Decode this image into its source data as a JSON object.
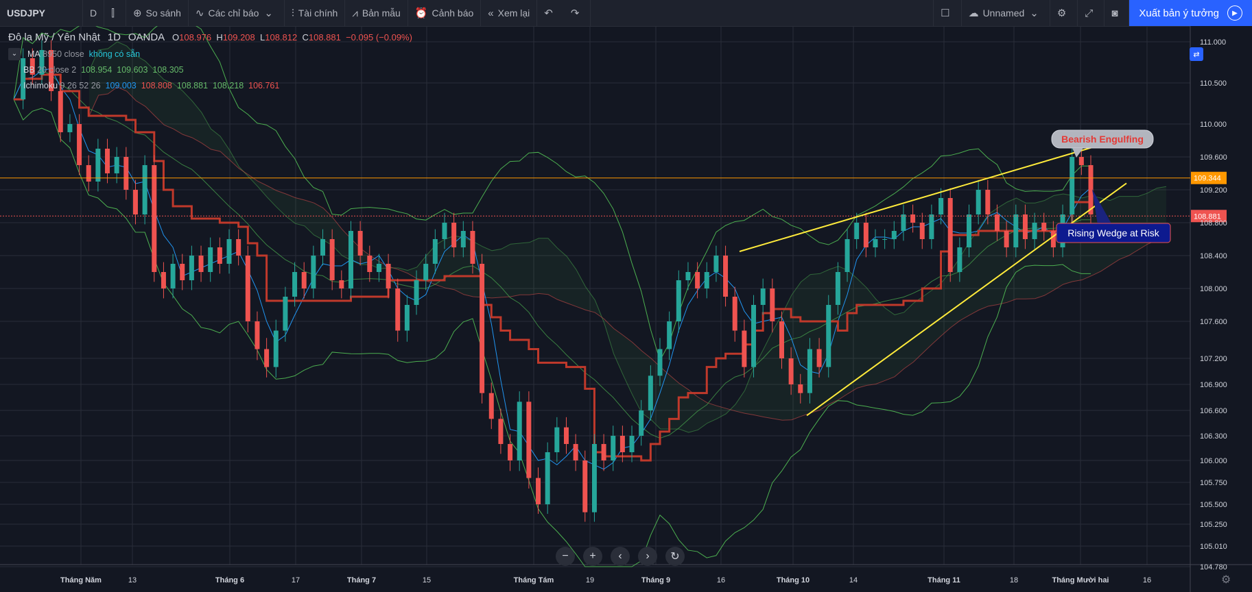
{
  "toolbar": {
    "symbol": "USDJPY",
    "interval": "D",
    "compare_label": "So sánh",
    "indicators_label": "Các chỉ báo",
    "financials_label": "Tài chính",
    "templates_label": "Bản mẫu",
    "alert_label": "Cảnh báo",
    "replay_label": "Xem lại",
    "layout_name": "Unnamed",
    "publish_label": "Xuất bản ý tưởng"
  },
  "legend": {
    "instrument": "Đô la Mỹ / Yên Nhật",
    "interval": "1D",
    "exchange": "OANDA",
    "open_label": "O",
    "open": "108.976",
    "high_label": "H",
    "high": "109.208",
    "low_label": "L",
    "low": "108.812",
    "close_label": "C",
    "close": "108.881",
    "change": "−0.095 (−0.09%)",
    "ma_name": "MA",
    "ma_params": "8950 close",
    "ma_value": "không có sẵn",
    "bb_name": "BB",
    "bb_params": "20 close 2",
    "bb_v1": "108.954",
    "bb_v2": "109.603",
    "bb_v3": "108.305",
    "ichi_name": "Ichimoku",
    "ichi_params": "9 26 52 26",
    "ichi_v1": "109.003",
    "ichi_v2": "108.808",
    "ichi_v3": "108.881",
    "ichi_v4": "108.218",
    "ichi_v5": "106.761"
  },
  "colors": {
    "bg": "#131722",
    "grid": "#2a2e39",
    "up": "#26a69a",
    "down": "#ef5350",
    "kijun": "#c0392b",
    "tenkan": "#2196f3",
    "bb": "#4caf50",
    "wedge": "#ffeb3b",
    "hline": "#ff9800"
  },
  "chart_data": {
    "type": "candlestick",
    "y_ticks": [
      111.0,
      110.5,
      110.0,
      109.6,
      109.2,
      108.8,
      108.4,
      108.0,
      107.6,
      107.2,
      106.9,
      106.6,
      106.3,
      106.0,
      105.75,
      105.5,
      105.25,
      105.01,
      104.78
    ],
    "y_tick_labels": [
      "111.000",
      "110.500",
      "110.000",
      "109.600",
      "109.200",
      "108.800",
      "108.400",
      "108.000",
      "107.600",
      "107.200",
      "106.900",
      "106.600",
      "106.300",
      "106.000",
      "105.750",
      "105.500",
      "105.250",
      "105.010",
      "104.780"
    ],
    "x_labels": [
      "Tháng Năm",
      "13",
      "Tháng 6",
      "17",
      "Tháng 7",
      "15",
      "Tháng Tám",
      "19",
      "Tháng 9",
      "16",
      "Tháng 10",
      "14",
      "Tháng 11",
      "18",
      "Tháng Mười hai",
      "16"
    ],
    "price_line_1": {
      "value": 109.344,
      "label": "109.344"
    },
    "price_line_2": {
      "value": 108.881,
      "label": "108.881"
    },
    "annotations": [
      {
        "text": "Bearish Engulfing"
      },
      {
        "text": "Rising Wedge at Risk"
      }
    ],
    "close_path": [
      110.3,
      110.8,
      110.6,
      110.9,
      110.4,
      109.9,
      110.0,
      109.5,
      109.3,
      109.7,
      109.4,
      109.6,
      109.2,
      108.9,
      109.5,
      108.2,
      108.0,
      108.3,
      108.1,
      108.4,
      108.2,
      108.5,
      108.3,
      108.6,
      108.4,
      107.6,
      107.3,
      107.1,
      107.5,
      107.9,
      108.2,
      108.0,
      108.4,
      108.6,
      108.1,
      108.0,
      108.7,
      108.4,
      108.2,
      108.3,
      108.0,
      107.5,
      107.8,
      108.1,
      108.3,
      108.6,
      108.8,
      108.5,
      108.7,
      108.3,
      106.8,
      106.5,
      106.2,
      106.0,
      106.7,
      105.8,
      105.5,
      106.1,
      106.4,
      106.2,
      106.0,
      105.4,
      106.2,
      106.0,
      106.3,
      106.1,
      106.3,
      106.6,
      107.0,
      107.3,
      107.6,
      108.1,
      108.2,
      108.0,
      108.2,
      108.4,
      107.9,
      107.5,
      107.1,
      107.8,
      108.0,
      107.6,
      107.2,
      106.9,
      106.8,
      107.3,
      107.1,
      107.8,
      108.2,
      108.6,
      108.8,
      108.5,
      108.6,
      108.6,
      108.7,
      108.9,
      108.8,
      108.6,
      108.9,
      109.1,
      108.2,
      108.5,
      108.9,
      109.2,
      108.9,
      108.7,
      108.5,
      108.9,
      108.6,
      108.8,
      108.7,
      108.5,
      108.9,
      109.6,
      109.5,
      108.9
    ]
  }
}
